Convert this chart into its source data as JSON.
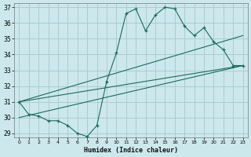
{
  "xlabel": "Humidex (Indice chaleur)",
  "background_color": "#cce8ec",
  "grid_color": "#aaccd4",
  "line_color": "#1a6b5a",
  "xlim": [
    -0.5,
    23.5
  ],
  "ylim": [
    28.75,
    37.25
  ],
  "xticks": [
    0,
    1,
    2,
    3,
    4,
    5,
    6,
    7,
    8,
    9,
    10,
    11,
    12,
    13,
    14,
    15,
    16,
    17,
    18,
    19,
    20,
    21,
    22,
    23
  ],
  "yticks": [
    29,
    30,
    31,
    32,
    33,
    34,
    35,
    36,
    37
  ],
  "line1_x": [
    0,
    1,
    2,
    3,
    4,
    5,
    6,
    7,
    8,
    9,
    10,
    11,
    12,
    13,
    14,
    15,
    16,
    17,
    18,
    19,
    20,
    21,
    22,
    23
  ],
  "line1_y": [
    31.0,
    30.2,
    30.1,
    29.8,
    29.8,
    29.5,
    29.0,
    28.8,
    29.5,
    32.3,
    34.1,
    36.6,
    36.9,
    35.5,
    36.5,
    37.0,
    36.9,
    35.8,
    35.2,
    35.7,
    34.8,
    34.3,
    33.3,
    33.3
  ],
  "line2_x": [
    0,
    23
  ],
  "line2_y": [
    31.0,
    33.3
  ],
  "line3_x": [
    0,
    23
  ],
  "line3_y": [
    30.0,
    33.3
  ],
  "line4_x": [
    0,
    23
  ],
  "line4_y": [
    31.0,
    35.2
  ]
}
